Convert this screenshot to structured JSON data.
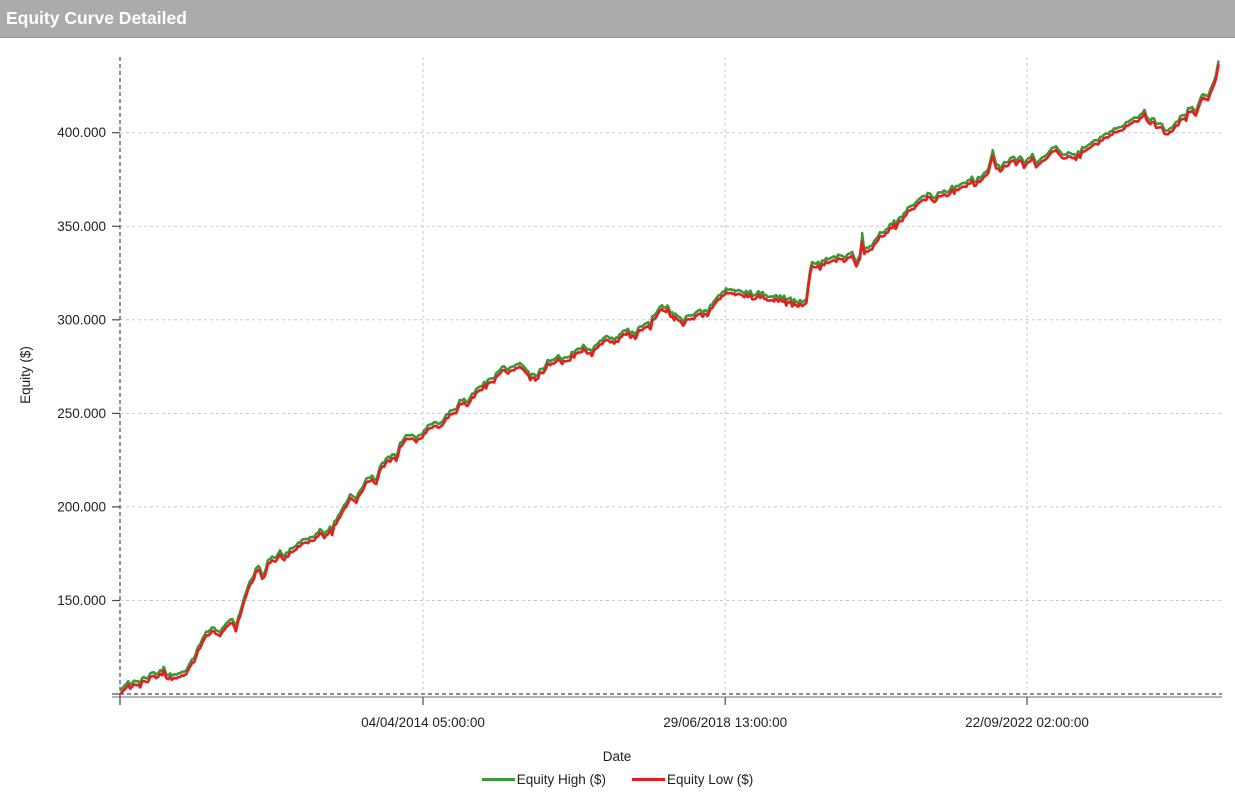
{
  "title_bar": {
    "title": "Equity Curve Detailed",
    "bg_color": "#ababab",
    "text_color": "#ffffff"
  },
  "chart_data": {
    "type": "line",
    "title": "Equity Curve Detailed",
    "xlabel": "Date",
    "ylabel": "Equity ($)",
    "unit": "USD",
    "value_scale": 1000,
    "grid": true,
    "legend_position": "bottom",
    "noise_amplitude_k": 1.5,
    "colors": {
      "grid_light": "#c9c9c9",
      "axis_dark": "#4a4a4a",
      "axis_solid": "#9c9c9c",
      "equity_high": "#3b983b",
      "equity_low": "#e81e1e",
      "text": "#212121"
    },
    "x_axis": {
      "min_year": 2010.007,
      "max_year": 2025.414,
      "ticks": [
        {
          "year": 2014.2552,
          "label": "04/04/2014 05:00:00"
        },
        {
          "year": 2018.4914,
          "label": "29/06/2018 13:00:00"
        },
        {
          "year": 2022.7229,
          "label": "22/09/2022 02:00:00"
        }
      ]
    },
    "y_axis": {
      "min": 100,
      "max": 440,
      "baseline_value": 100,
      "ticks": [
        {
          "value": 150,
          "label": "150.000"
        },
        {
          "value": 200,
          "label": "200.000"
        },
        {
          "value": 250,
          "label": "250.000"
        },
        {
          "value": 300,
          "label": "300.000"
        },
        {
          "value": 350,
          "label": "350.000"
        },
        {
          "value": 400,
          "label": "400.000"
        }
      ]
    },
    "series": [
      {
        "name": "Equity High ($)",
        "color": "#3b983b",
        "rule": "equity_low + ~2 (hidden behind low except at peaks)",
        "offset_from_low": 2,
        "spike_points": [
          [
            2019.71,
            331.5
          ],
          [
            2020.41,
            345.5
          ],
          [
            2022.24,
            391
          ],
          [
            2024.37,
            411.5
          ]
        ]
      },
      {
        "name": "Equity Low ($)",
        "color": "#e81e1e",
        "points": [
          [
            2010.01,
            100
          ],
          [
            2010.04,
            101
          ],
          [
            2010.07,
            102.5
          ],
          [
            2010.12,
            103.5
          ],
          [
            2010.18,
            103
          ],
          [
            2010.23,
            105.5
          ],
          [
            2010.29,
            104.5
          ],
          [
            2010.34,
            107.5
          ],
          [
            2010.4,
            106.5
          ],
          [
            2010.46,
            110
          ],
          [
            2010.51,
            108.5
          ],
          [
            2010.57,
            110.5
          ],
          [
            2010.62,
            111
          ],
          [
            2010.68,
            108.5
          ],
          [
            2010.73,
            107.5
          ],
          [
            2010.79,
            109
          ],
          [
            2010.85,
            108
          ],
          [
            2010.9,
            110.5
          ],
          [
            2010.96,
            113
          ],
          [
            2011.02,
            116
          ],
          [
            2011.07,
            120
          ],
          [
            2011.13,
            126
          ],
          [
            2011.18,
            129
          ],
          [
            2011.24,
            131
          ],
          [
            2011.3,
            132.5
          ],
          [
            2011.35,
            133
          ],
          [
            2011.41,
            131.5
          ],
          [
            2011.47,
            134.5
          ],
          [
            2011.52,
            136.5
          ],
          [
            2011.58,
            137
          ],
          [
            2011.63,
            135.5
          ],
          [
            2011.69,
            141
          ],
          [
            2011.75,
            150
          ],
          [
            2011.8,
            156
          ],
          [
            2011.86,
            160
          ],
          [
            2011.91,
            165.5
          ],
          [
            2011.95,
            166.5
          ],
          [
            2012.0,
            161.5
          ],
          [
            2012.04,
            164
          ],
          [
            2012.08,
            169
          ],
          [
            2012.14,
            171.5
          ],
          [
            2012.19,
            170.5
          ],
          [
            2012.25,
            174
          ],
          [
            2012.31,
            172.5
          ],
          [
            2012.36,
            174.5
          ],
          [
            2012.42,
            176
          ],
          [
            2012.48,
            177
          ],
          [
            2012.53,
            179
          ],
          [
            2012.59,
            181
          ],
          [
            2012.64,
            180.5
          ],
          [
            2012.7,
            182
          ],
          [
            2012.76,
            184
          ],
          [
            2012.81,
            185.5
          ],
          [
            2012.87,
            183.5
          ],
          [
            2012.92,
            186
          ],
          [
            2012.98,
            188
          ],
          [
            2013.04,
            191
          ],
          [
            2013.09,
            194
          ],
          [
            2013.15,
            198
          ],
          [
            2013.2,
            202
          ],
          [
            2013.26,
            205
          ],
          [
            2013.32,
            202
          ],
          [
            2013.37,
            207.5
          ],
          [
            2013.43,
            210.5
          ],
          [
            2013.48,
            214
          ],
          [
            2013.54,
            214.5
          ],
          [
            2013.6,
            212.5
          ],
          [
            2013.65,
            219
          ],
          [
            2013.71,
            222
          ],
          [
            2013.77,
            226
          ],
          [
            2013.82,
            226.5
          ],
          [
            2013.88,
            225
          ],
          [
            2013.93,
            231
          ],
          [
            2013.99,
            235
          ],
          [
            2014.05,
            236.5
          ],
          [
            2014.1,
            236
          ],
          [
            2014.16,
            234.5
          ],
          [
            2014.21,
            237
          ],
          [
            2014.27,
            239
          ],
          [
            2014.32,
            241
          ],
          [
            2014.38,
            242.5
          ],
          [
            2014.44,
            243
          ],
          [
            2014.49,
            241.5
          ],
          [
            2014.55,
            245
          ],
          [
            2014.6,
            248
          ],
          [
            2014.66,
            249.5
          ],
          [
            2014.72,
            251
          ],
          [
            2014.77,
            256
          ],
          [
            2014.83,
            255
          ],
          [
            2014.88,
            253.5
          ],
          [
            2014.94,
            258
          ],
          [
            2015.0,
            260.5
          ],
          [
            2015.05,
            262.5
          ],
          [
            2015.11,
            264
          ],
          [
            2015.16,
            265.5
          ],
          [
            2015.22,
            266.5
          ],
          [
            2015.28,
            268.5
          ],
          [
            2015.33,
            271
          ],
          [
            2015.39,
            273
          ],
          [
            2015.44,
            272.5
          ],
          [
            2015.5,
            272
          ],
          [
            2015.55,
            273.5
          ],
          [
            2015.61,
            275
          ],
          [
            2015.67,
            273.5
          ],
          [
            2015.72,
            270
          ],
          [
            2015.78,
            268.5
          ],
          [
            2015.83,
            268
          ],
          [
            2015.89,
            270.5
          ],
          [
            2015.94,
            272.5
          ],
          [
            2016.0,
            275.5
          ],
          [
            2016.06,
            276.5
          ],
          [
            2016.11,
            277.5
          ],
          [
            2016.17,
            278
          ],
          [
            2016.22,
            276.5
          ],
          [
            2016.28,
            278.5
          ],
          [
            2016.34,
            279.5
          ],
          [
            2016.39,
            281
          ],
          [
            2016.45,
            282.5
          ],
          [
            2016.5,
            284
          ],
          [
            2016.56,
            282
          ],
          [
            2016.62,
            283
          ],
          [
            2016.67,
            284.5
          ],
          [
            2016.73,
            286
          ],
          [
            2016.78,
            287.5
          ],
          [
            2016.84,
            289
          ],
          [
            2016.9,
            288
          ],
          [
            2016.95,
            287
          ],
          [
            2017.01,
            290
          ],
          [
            2017.06,
            291.5
          ],
          [
            2017.12,
            292.5
          ],
          [
            2017.17,
            291.5
          ],
          [
            2017.23,
            291
          ],
          [
            2017.29,
            293.5
          ],
          [
            2017.34,
            294.5
          ],
          [
            2017.4,
            296.5
          ],
          [
            2017.45,
            298.5
          ],
          [
            2017.51,
            301
          ],
          [
            2017.57,
            303.5
          ],
          [
            2017.62,
            305
          ],
          [
            2017.68,
            304.5
          ],
          [
            2017.73,
            302.5
          ],
          [
            2017.79,
            300.5
          ],
          [
            2017.85,
            298
          ],
          [
            2017.9,
            297.5
          ],
          [
            2017.96,
            299.5
          ],
          [
            2018.01,
            300.5
          ],
          [
            2018.07,
            301.5
          ],
          [
            2018.12,
            303
          ],
          [
            2018.18,
            302
          ],
          [
            2018.24,
            303.5
          ],
          [
            2018.29,
            305.5
          ],
          [
            2018.35,
            308
          ],
          [
            2018.4,
            311
          ],
          [
            2018.46,
            312.5
          ],
          [
            2018.52,
            314
          ],
          [
            2018.57,
            314.5
          ],
          [
            2018.63,
            313
          ],
          [
            2018.68,
            314
          ],
          [
            2018.74,
            312.5
          ],
          [
            2018.8,
            313.5
          ],
          [
            2018.85,
            312.5
          ],
          [
            2018.91,
            311.5
          ],
          [
            2018.96,
            312.5
          ],
          [
            2019.02,
            312
          ],
          [
            2019.08,
            311.5
          ],
          [
            2019.13,
            311
          ],
          [
            2019.19,
            310.5
          ],
          [
            2019.24,
            311
          ],
          [
            2019.3,
            310
          ],
          [
            2019.36,
            309
          ],
          [
            2019.41,
            309
          ],
          [
            2019.47,
            307.5
          ],
          [
            2019.54,
            308
          ],
          [
            2019.6,
            307
          ],
          [
            2019.63,
            309
          ],
          [
            2019.66,
            318
          ],
          [
            2019.68,
            324
          ],
          [
            2019.71,
            329.5
          ],
          [
            2019.74,
            327.5
          ],
          [
            2019.77,
            328.5
          ],
          [
            2019.82,
            328.5
          ],
          [
            2019.88,
            329.5
          ],
          [
            2019.93,
            330.5
          ],
          [
            2019.99,
            331.5
          ],
          [
            2020.05,
            332
          ],
          [
            2020.1,
            332.5
          ],
          [
            2020.16,
            331
          ],
          [
            2020.21,
            333
          ],
          [
            2020.27,
            334
          ],
          [
            2020.33,
            330
          ],
          [
            2020.38,
            332.5
          ],
          [
            2020.41,
            341
          ],
          [
            2020.44,
            336
          ],
          [
            2020.49,
            337
          ],
          [
            2020.55,
            339
          ],
          [
            2020.6,
            341
          ],
          [
            2020.66,
            343.5
          ],
          [
            2020.72,
            345.5
          ],
          [
            2020.77,
            347.5
          ],
          [
            2020.83,
            349.5
          ],
          [
            2020.88,
            351
          ],
          [
            2020.94,
            353
          ],
          [
            2021.0,
            355
          ],
          [
            2021.05,
            357.5
          ],
          [
            2021.11,
            359.5
          ],
          [
            2021.16,
            361
          ],
          [
            2021.22,
            362.5
          ],
          [
            2021.28,
            364
          ],
          [
            2021.33,
            365
          ],
          [
            2021.39,
            364
          ],
          [
            2021.44,
            363.5
          ],
          [
            2021.5,
            366
          ],
          [
            2021.56,
            367
          ],
          [
            2021.61,
            366.5
          ],
          [
            2021.67,
            369
          ],
          [
            2021.72,
            368.5
          ],
          [
            2021.78,
            371
          ],
          [
            2021.84,
            372
          ],
          [
            2021.89,
            371
          ],
          [
            2021.95,
            373.5
          ],
          [
            2022.0,
            372.5
          ],
          [
            2022.06,
            374
          ],
          [
            2022.12,
            376
          ],
          [
            2022.18,
            378.5
          ],
          [
            2022.24,
            388
          ],
          [
            2022.29,
            381
          ],
          [
            2022.35,
            379.5
          ],
          [
            2022.4,
            381.5
          ],
          [
            2022.46,
            383.5
          ],
          [
            2022.52,
            385.5
          ],
          [
            2022.57,
            384
          ],
          [
            2022.63,
            385
          ],
          [
            2022.68,
            382
          ],
          [
            2022.74,
            384.5
          ],
          [
            2022.8,
            386.5
          ],
          [
            2022.85,
            382.5
          ],
          [
            2022.91,
            384
          ],
          [
            2022.96,
            386
          ],
          [
            2023.02,
            388
          ],
          [
            2023.08,
            389.5
          ],
          [
            2023.13,
            390.5
          ],
          [
            2023.19,
            387.5
          ],
          [
            2023.24,
            386
          ],
          [
            2023.3,
            387.5
          ],
          [
            2023.36,
            386.5
          ],
          [
            2023.41,
            385.5
          ],
          [
            2023.47,
            388.5
          ],
          [
            2023.52,
            390
          ],
          [
            2023.58,
            391.5
          ],
          [
            2023.64,
            393
          ],
          [
            2023.69,
            394
          ],
          [
            2023.75,
            395
          ],
          [
            2023.8,
            396.5
          ],
          [
            2023.86,
            397.5
          ],
          [
            2023.92,
            399
          ],
          [
            2023.97,
            400
          ],
          [
            2024.03,
            401
          ],
          [
            2024.08,
            402.5
          ],
          [
            2024.14,
            403.5
          ],
          [
            2024.2,
            405
          ],
          [
            2024.25,
            406.5
          ],
          [
            2024.31,
            408
          ],
          [
            2024.37,
            409.5
          ],
          [
            2024.42,
            406.5
          ],
          [
            2024.48,
            404.5
          ],
          [
            2024.53,
            406
          ],
          [
            2024.59,
            402.5
          ],
          [
            2024.65,
            400
          ],
          [
            2024.7,
            398.5
          ],
          [
            2024.76,
            401.5
          ],
          [
            2024.81,
            403.5
          ],
          [
            2024.87,
            406
          ],
          [
            2024.93,
            408
          ],
          [
            2024.98,
            410.5
          ],
          [
            2025.04,
            412
          ],
          [
            2025.07,
            409.5
          ],
          [
            2025.09,
            409
          ],
          [
            2025.15,
            416
          ],
          [
            2025.2,
            419.5
          ],
          [
            2025.23,
            417
          ],
          [
            2025.26,
            418
          ],
          [
            2025.32,
            423
          ],
          [
            2025.37,
            429
          ],
          [
            2025.41,
            436
          ]
        ]
      }
    ]
  }
}
